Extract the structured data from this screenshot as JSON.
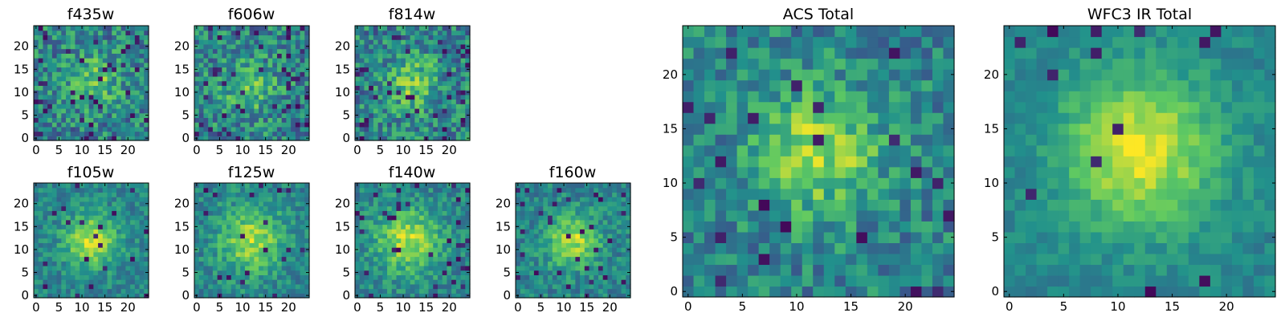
{
  "figure": {
    "colormap": "viridis",
    "colors": {
      "viridis": [
        "#440154",
        "#3b528b",
        "#21918c",
        "#5ec962",
        "#fde725"
      ],
      "frame": "#000000",
      "background": "#ffffff"
    }
  },
  "chart_data": [
    {
      "type": "heatmap",
      "title": "f435w",
      "xlim": [
        0,
        24
      ],
      "ylim": [
        0,
        24
      ],
      "xticks": [
        "0",
        "5",
        "10",
        "15",
        "20"
      ],
      "yticks": [
        "0",
        "5",
        "10",
        "15",
        "20"
      ],
      "grid": false,
      "pixel_scale": 0.06,
      "sigma": 4,
      "peak": [
        13,
        13
      ],
      "amp": 0.5,
      "noise": 0.95,
      "dip": 0.06,
      "seed": 11
    },
    {
      "type": "heatmap",
      "title": "f606w",
      "xlim": [
        0,
        24
      ],
      "ylim": [
        0,
        24
      ],
      "xticks": [
        "0",
        "5",
        "10",
        "15",
        "20"
      ],
      "yticks": [
        "0",
        "5",
        "10",
        "15",
        "20"
      ],
      "grid": false,
      "pixel_scale": 0.06,
      "sigma": 4,
      "peak": [
        11,
        11
      ],
      "amp": 0.6,
      "noise": 0.95,
      "dip": 0.07,
      "seed": 23
    },
    {
      "type": "heatmap",
      "title": "f814w",
      "xlim": [
        0,
        24
      ],
      "ylim": [
        0,
        24
      ],
      "xticks": [
        "0",
        "5",
        "10",
        "15",
        "20"
      ],
      "yticks": [
        "0",
        "5",
        "10",
        "15",
        "20"
      ],
      "grid": false,
      "pixel_scale": 0.06,
      "sigma": 4,
      "peak": [
        12,
        12
      ],
      "amp": 0.6,
      "noise": 0.95,
      "dip": 0.06,
      "seed": 37
    },
    {
      "type": "heatmap",
      "title": "f105w",
      "xlim": [
        0,
        24
      ],
      "ylim": [
        0,
        24
      ],
      "xticks": [
        "0",
        "5",
        "10",
        "15",
        "20"
      ],
      "yticks": [
        "0",
        "5",
        "10",
        "15",
        "20"
      ],
      "grid": false,
      "pixel_scale": 0.06,
      "sigma": 4,
      "peak": [
        12,
        12
      ],
      "amp": 0.9,
      "noise": 0.55,
      "dip": 0.03,
      "seed": 41
    },
    {
      "type": "heatmap",
      "title": "f125w",
      "xlim": [
        0,
        24
      ],
      "ylim": [
        0,
        24
      ],
      "xticks": [
        "0",
        "5",
        "10",
        "15",
        "20"
      ],
      "yticks": [
        "0",
        "5",
        "10",
        "15",
        "20"
      ],
      "grid": false,
      "pixel_scale": 0.06,
      "sigma": 5,
      "peak": [
        12,
        12
      ],
      "amp": 0.8,
      "noise": 0.6,
      "dip": 0.04,
      "seed": 53
    },
    {
      "type": "heatmap",
      "title": "f140w",
      "xlim": [
        0,
        24
      ],
      "ylim": [
        0,
        24
      ],
      "xticks": [
        "0",
        "5",
        "10",
        "15",
        "20"
      ],
      "yticks": [
        "0",
        "5",
        "10",
        "15",
        "20"
      ],
      "grid": false,
      "pixel_scale": 0.06,
      "sigma": 5,
      "peak": [
        11,
        12
      ],
      "amp": 0.85,
      "noise": 0.6,
      "dip": 0.05,
      "seed": 67
    },
    {
      "type": "heatmap",
      "title": "f160w",
      "xlim": [
        0,
        24
      ],
      "ylim": [
        0,
        24
      ],
      "xticks": [
        "0",
        "5",
        "10",
        "15",
        "20"
      ],
      "yticks": [
        "0",
        "5",
        "10",
        "15",
        "20"
      ],
      "grid": false,
      "pixel_scale": 0.06,
      "sigma": 4,
      "peak": [
        12,
        12
      ],
      "amp": 0.85,
      "noise": 0.6,
      "dip": 0.05,
      "seed": 71
    },
    {
      "type": "heatmap",
      "title": "ACS Total",
      "xlim": [
        0,
        24
      ],
      "ylim": [
        0,
        24
      ],
      "xticks": [
        "0",
        "5",
        "10",
        "15",
        "20"
      ],
      "yticks": [
        "0",
        "5",
        "10",
        "15",
        "20"
      ],
      "grid": false,
      "pixel_scale": 0.06,
      "sigma": 4,
      "peak": [
        12,
        13
      ],
      "amp": 0.8,
      "noise": 0.75,
      "dip": 0.04,
      "seed": 83
    },
    {
      "type": "heatmap",
      "title": "WFC3 IR Total",
      "xlim": [
        0,
        24
      ],
      "ylim": [
        0,
        24
      ],
      "xticks": [
        "0",
        "5",
        "10",
        "15",
        "20"
      ],
      "yticks": [
        "0",
        "5",
        "10",
        "15",
        "20"
      ],
      "grid": false,
      "pixel_scale": 0.06,
      "sigma": 5,
      "peak": [
        12,
        13
      ],
      "amp": 1.0,
      "noise": 0.35,
      "dip": 0.03,
      "seed": 97
    }
  ]
}
